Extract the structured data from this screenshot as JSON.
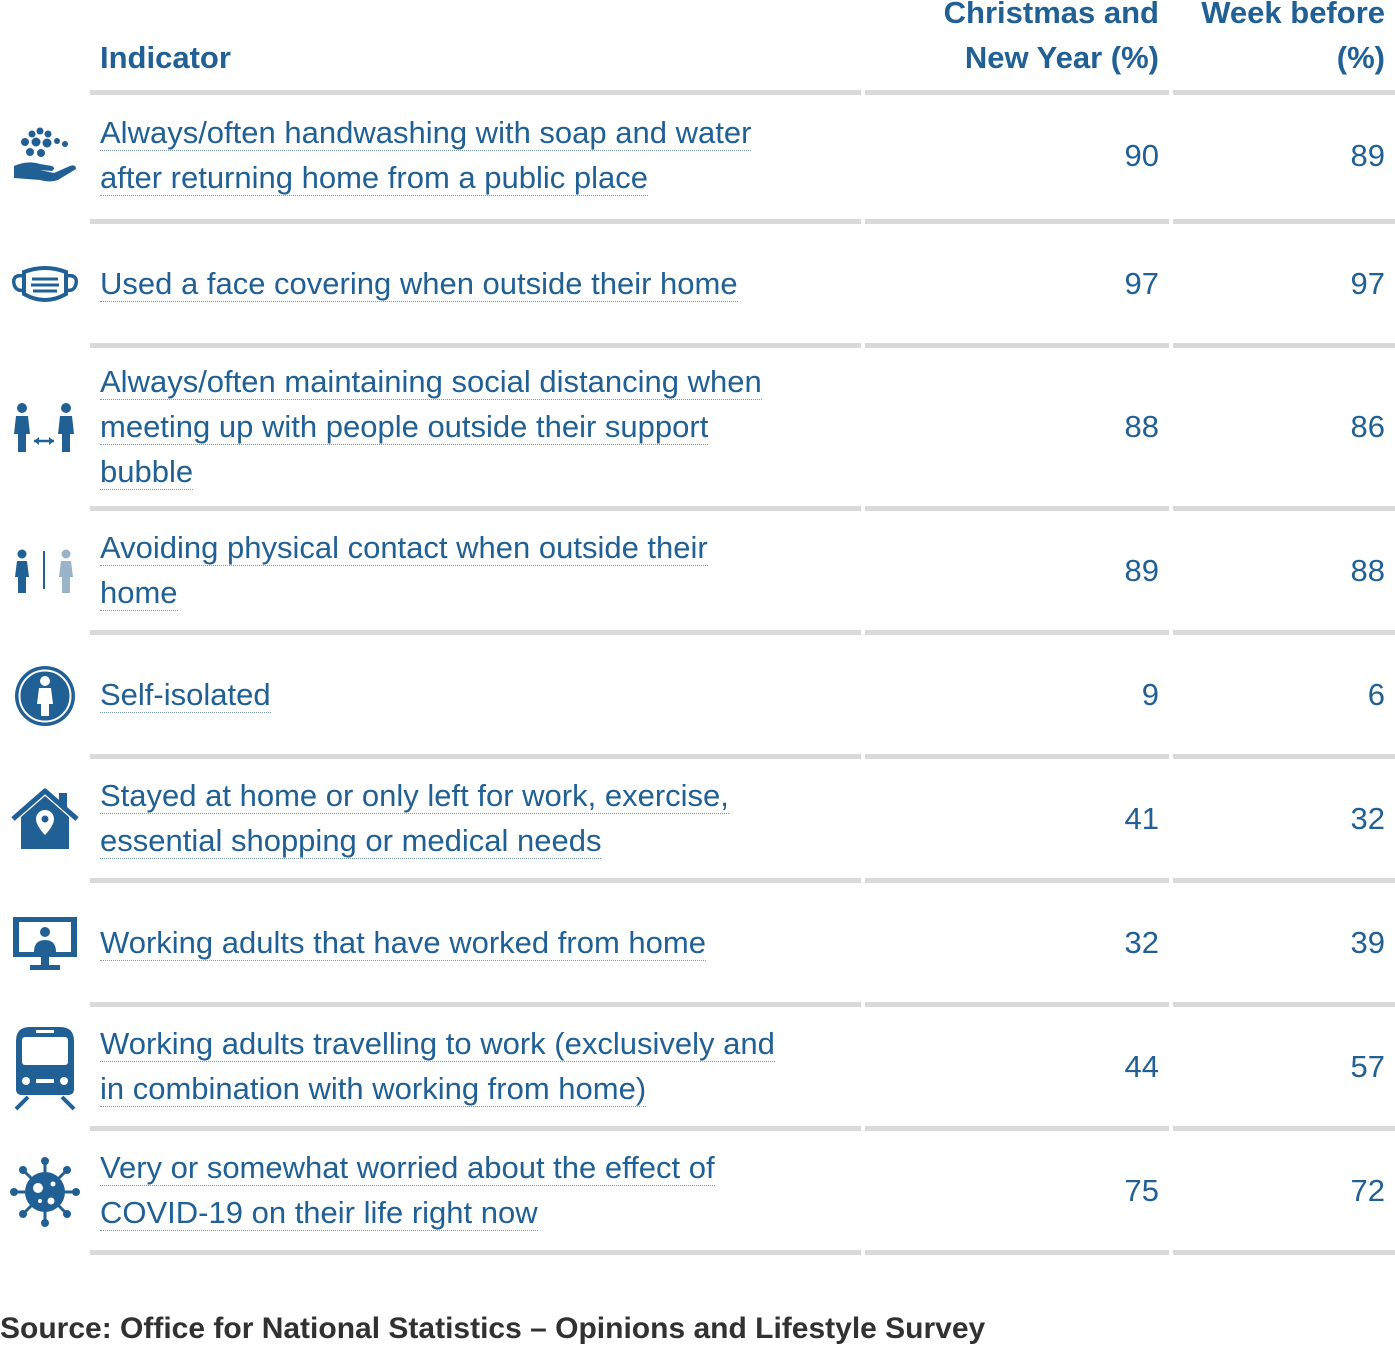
{
  "chart_data": {
    "type": "table",
    "columns": [
      "Indicator",
      "Christmas and New Year (%)",
      "Week before (%)"
    ],
    "header": {
      "indicator": "Indicator",
      "christmas_line1": "Christmas and",
      "christmas_line2": "New Year (%)",
      "week_line1": "Week before",
      "week_line2": "(%)"
    },
    "rows": [
      {
        "icon": "handwashing-icon",
        "label": "Always/often handwashing with soap and water after returning home from a public place",
        "christmas": 90,
        "week_before": 89
      },
      {
        "icon": "face-mask-icon",
        "label": "Used a face covering when outside their home",
        "christmas": 97,
        "week_before": 97
      },
      {
        "icon": "social-distancing-icon",
        "label": "Always/often maintaining social distancing when meeting up with people outside their support bubble",
        "christmas": 88,
        "week_before": 86
      },
      {
        "icon": "no-contact-icon",
        "label": "Avoiding physical contact when outside their home",
        "christmas": 89,
        "week_before": 88
      },
      {
        "icon": "self-isolation-icon",
        "label": "Self-isolated",
        "christmas": 9,
        "week_before": 6
      },
      {
        "icon": "house-location-icon",
        "label": "Stayed at home or only left for work, exercise, essential shopping or medical needs",
        "christmas": 41,
        "week_before": 32
      },
      {
        "icon": "video-call-monitor-icon",
        "label": "Working adults that have worked from home",
        "christmas": 32,
        "week_before": 39
      },
      {
        "icon": "train-icon",
        "label": "Working adults travelling to work (exclusively and in combination with working from home)",
        "christmas": 44,
        "week_before": 57
      },
      {
        "icon": "virus-icon",
        "label": "Very or somewhat worried about the effect of COVID-19 on their life right now",
        "christmas": 75,
        "week_before": 72
      }
    ]
  },
  "source": "Source: Office for National Statistics – Opinions and Lifestyle Survey",
  "colors": {
    "accent": "#206095",
    "rule": "#d9d9d9",
    "light_figure": "#9bb3c8"
  }
}
